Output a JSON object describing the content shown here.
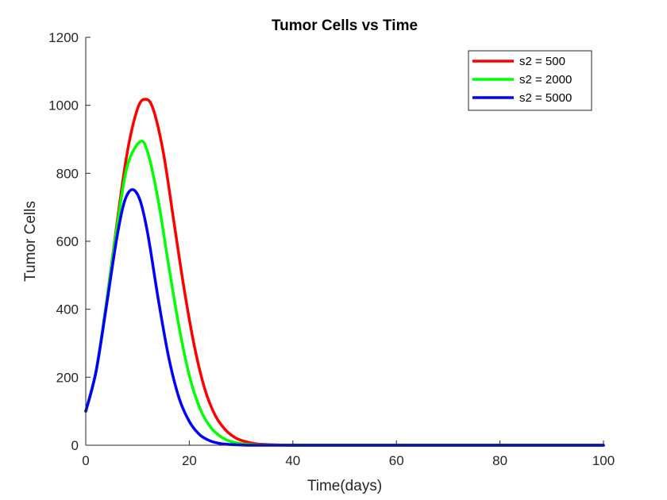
{
  "chart_data": {
    "type": "line",
    "title": "Tumor Cells vs Time",
    "xlabel": "Time(days)",
    "ylabel": "Tumor Cells",
    "xlim": [
      0,
      100
    ],
    "ylim": [
      0,
      1200
    ],
    "xticks": [
      "0",
      "20",
      "40",
      "60",
      "80",
      "100"
    ],
    "yticks": [
      "0",
      "200",
      "400",
      "600",
      "800",
      "1000",
      "1200"
    ],
    "grid": false,
    "legend_position": "top-right",
    "series": [
      {
        "name": "s2 = 500",
        "color": "#ff0000",
        "x": [
          0,
          2,
          4,
          6,
          8,
          10,
          11.5,
          13,
          15,
          17,
          19,
          21,
          23,
          25,
          27,
          29,
          31,
          33,
          35,
          40,
          50,
          60,
          70,
          80,
          90,
          100
        ],
        "y": [
          100,
          218,
          420,
          650,
          860,
          990,
          1018,
          990,
          860,
          660,
          460,
          290,
          165,
          88,
          45,
          21,
          10,
          4,
          2,
          0,
          0,
          0,
          0,
          0,
          0,
          0
        ]
      },
      {
        "name": "s2 = 2000",
        "color": "#00ff00",
        "x": [
          0,
          2,
          4,
          6,
          8,
          10.5,
          12,
          14,
          16,
          18,
          20,
          22,
          24,
          26,
          28,
          30,
          32,
          34,
          40,
          50,
          60,
          70,
          80,
          90,
          100
        ],
        "y": [
          100,
          218,
          420,
          640,
          820,
          893,
          860,
          720,
          530,
          350,
          205,
          110,
          55,
          26,
          11,
          5,
          2,
          1,
          0,
          0,
          0,
          0,
          0,
          0,
          0
        ]
      },
      {
        "name": "s2 = 5000",
        "color": "#0000ff",
        "x": [
          0,
          2,
          4,
          6,
          7.5,
          9,
          10.5,
          12,
          14,
          16,
          18,
          20,
          22,
          24,
          26,
          28,
          30,
          32,
          40,
          50,
          60,
          70,
          80,
          90,
          100
        ],
        "y": [
          100,
          218,
          410,
          610,
          718,
          752,
          720,
          620,
          430,
          260,
          140,
          70,
          31,
          13,
          5,
          2,
          1,
          0,
          0,
          0,
          0,
          0,
          0,
          0,
          0
        ]
      }
    ]
  }
}
